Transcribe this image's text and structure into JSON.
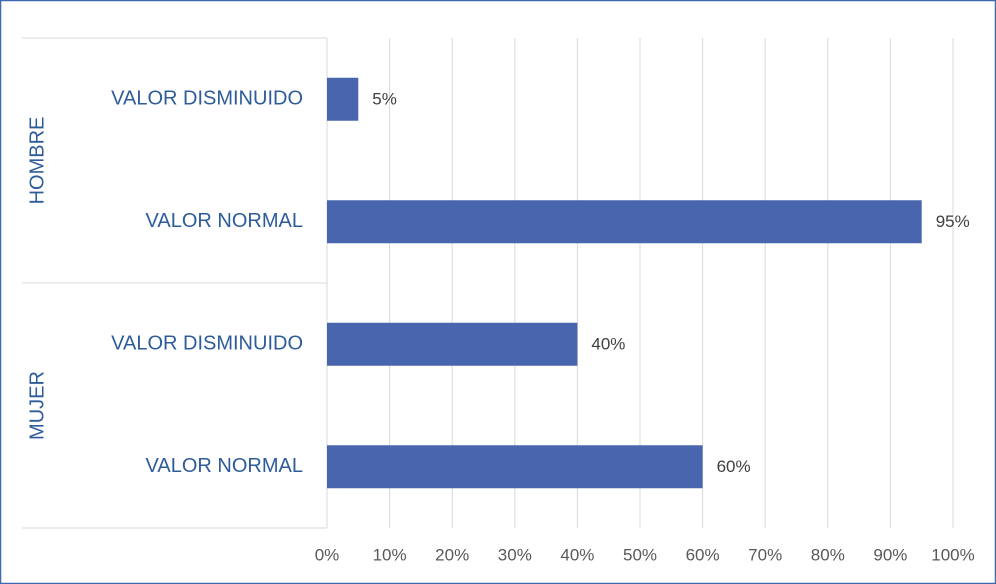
{
  "chart_data": {
    "type": "bar",
    "orientation": "horizontal",
    "groups": [
      "HOMBRE",
      "MUJER"
    ],
    "categories": [
      "VALOR DISMINUIDO",
      "VALOR NORMAL",
      "VALOR DISMINUIDO",
      "VALOR NORMAL"
    ],
    "values": [
      5,
      95,
      40,
      60
    ],
    "value_labels": [
      "5%",
      "95%",
      "40%",
      "60%"
    ],
    "color": "#4865ad",
    "xlim": [
      0,
      100
    ],
    "xticks": [
      {
        "value": 0,
        "label": "0%"
      },
      {
        "value": 10,
        "label": "10%"
      },
      {
        "value": 20,
        "label": "20%"
      },
      {
        "value": 30,
        "label": "30%"
      },
      {
        "value": 40,
        "label": "40%"
      },
      {
        "value": 50,
        "label": "50%"
      },
      {
        "value": 60,
        "label": "60%"
      },
      {
        "value": 70,
        "label": "70%"
      },
      {
        "value": 80,
        "label": "80%"
      },
      {
        "value": 90,
        "label": "90%"
      },
      {
        "value": 100,
        "label": "100%"
      }
    ],
    "grid": true
  }
}
